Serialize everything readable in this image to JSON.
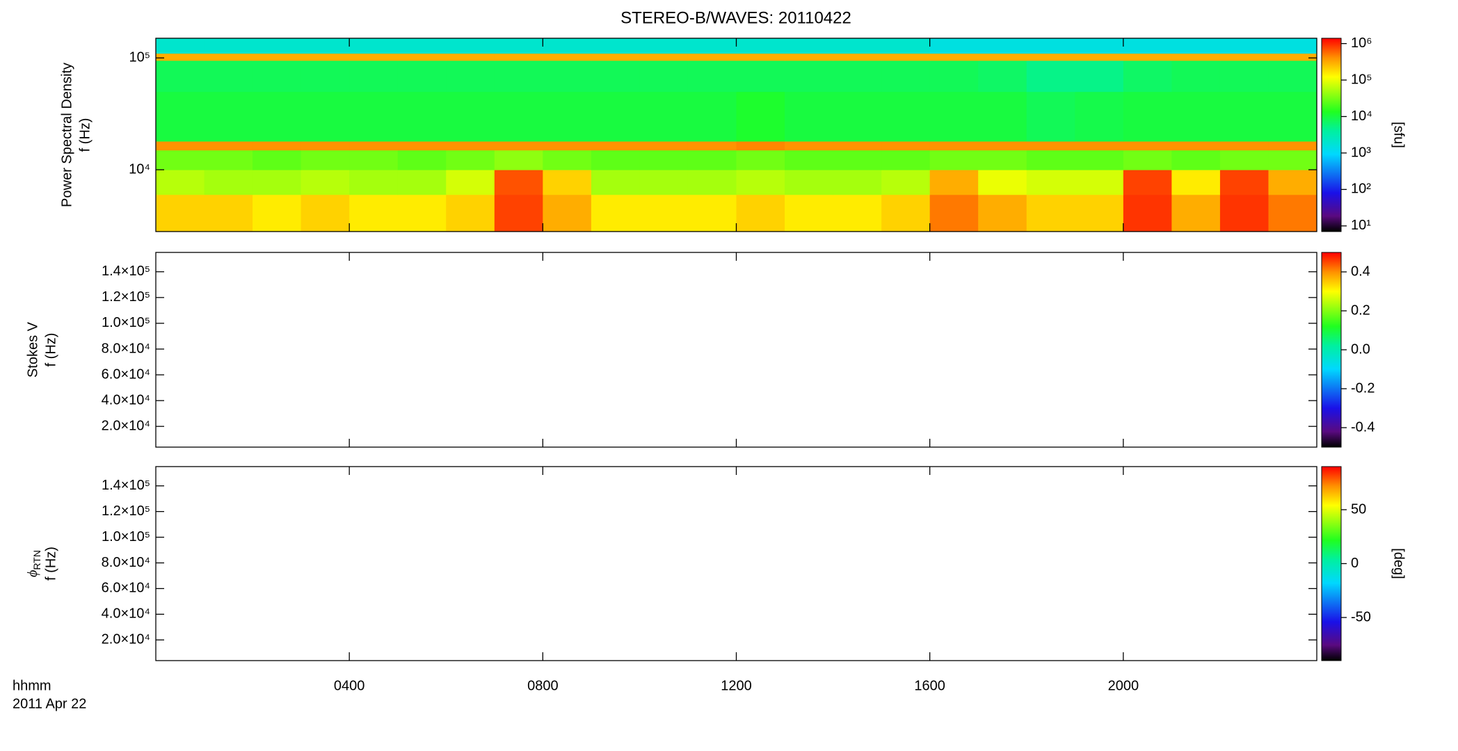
{
  "chart_data": [
    {
      "type": "heatmap",
      "title": "STEREO-B/WAVES: 20110422",
      "ylabel_lines": [
        "Power Spectral Density",
        "f (Hz)"
      ],
      "colorbar_label": "[sfu]",
      "log_y": true,
      "log_z": true,
      "xlim": [
        0,
        24
      ],
      "xticks": [
        {
          "value": 4,
          "label": "0400"
        },
        {
          "value": 8,
          "label": "0800"
        },
        {
          "value": 12,
          "label": "1200"
        },
        {
          "value": 16,
          "label": "1600"
        },
        {
          "value": 20,
          "label": "2000"
        }
      ],
      "ylim": [
        2800,
        150000
      ],
      "yticks": [
        {
          "value": 10000,
          "label": "10⁴"
        },
        {
          "value": 100000,
          "label": "10⁵"
        }
      ],
      "zlim": [
        7,
        1400000
      ],
      "zticks": [
        {
          "value": 10,
          "label": "10¹"
        },
        {
          "value": 100,
          "label": "10²"
        },
        {
          "value": 1000,
          "label": "10³"
        },
        {
          "value": 10000,
          "label": "10⁴"
        },
        {
          "value": 100000,
          "label": "10⁵"
        },
        {
          "value": 1000000,
          "label": "10⁶"
        }
      ],
      "x_edges": [
        0,
        1,
        2,
        3,
        4,
        5,
        6,
        7,
        8,
        9,
        10,
        11,
        12,
        13,
        14,
        15,
        16,
        17,
        18,
        19,
        20,
        21,
        22,
        23,
        24
      ],
      "y_edges": [
        2800,
        6000,
        10000,
        15000,
        18000,
        50000,
        95000,
        110000,
        150000
      ],
      "values": [
        [
          200000,
          200000,
          150000,
          200000,
          150000,
          150000,
          200000,
          800000,
          300000,
          150000,
          150000,
          150000,
          200000,
          150000,
          150000,
          200000,
          500000,
          300000,
          200000,
          200000,
          900000,
          300000,
          900000,
          500000
        ],
        [
          60000,
          50000,
          50000,
          60000,
          50000,
          50000,
          80000,
          700000,
          200000,
          50000,
          50000,
          50000,
          60000,
          50000,
          50000,
          60000,
          300000,
          100000,
          80000,
          80000,
          800000,
          150000,
          800000,
          300000
        ],
        [
          30000,
          30000,
          25000,
          30000,
          30000,
          25000,
          30000,
          40000,
          30000,
          25000,
          25000,
          25000,
          30000,
          25000,
          25000,
          25000,
          30000,
          30000,
          25000,
          25000,
          30000,
          25000,
          30000,
          30000
        ],
        [
          400000,
          400000,
          400000,
          400000,
          400000,
          400000,
          400000,
          400000,
          400000,
          400000,
          400000,
          400000,
          450000,
          400000,
          400000,
          400000,
          400000,
          400000,
          400000,
          400000,
          400000,
          400000,
          400000,
          400000
        ],
        [
          10000,
          10000,
          10000,
          10000,
          10000,
          10000,
          10000,
          10000,
          10000,
          10000,
          10000,
          10000,
          12000,
          10000,
          10000,
          10000,
          10000,
          10000,
          8000,
          9000,
          10000,
          10000,
          10000,
          10000
        ],
        [
          8000,
          8000,
          8000,
          8000,
          8000,
          8000,
          8000,
          8000,
          8000,
          8000,
          8000,
          8000,
          8000,
          8000,
          8000,
          8000,
          8000,
          7000,
          5000,
          5000,
          7000,
          8000,
          8000,
          8000
        ],
        [
          300000,
          300000,
          300000,
          300000,
          300000,
          300000,
          300000,
          300000,
          300000,
          300000,
          300000,
          300000,
          300000,
          300000,
          300000,
          300000,
          300000,
          300000,
          300000,
          300000,
          300000,
          300000,
          300000,
          300000
        ],
        [
          2000,
          2000,
          2000,
          2000,
          2000,
          2000,
          2000,
          2000,
          2000,
          2000,
          2000,
          2000,
          2000,
          2000,
          2000,
          2000,
          1500,
          1500,
          1500,
          1500,
          1500,
          1500,
          1500,
          1500
        ]
      ]
    },
    {
      "type": "heatmap",
      "ylabel_lines": [
        "Stokes V",
        "f (Hz)"
      ],
      "xlim": [
        0,
        24
      ],
      "xticks": [
        {
          "value": 4,
          "label": "0400"
        },
        {
          "value": 8,
          "label": "0800"
        },
        {
          "value": 12,
          "label": "1200"
        },
        {
          "value": 16,
          "label": "1600"
        },
        {
          "value": 20,
          "label": "2000"
        }
      ],
      "ylim": [
        3900,
        155000
      ],
      "yticks": [
        {
          "value": 20000,
          "label": "2.0×10⁴"
        },
        {
          "value": 40000,
          "label": "4.0×10⁴"
        },
        {
          "value": 60000,
          "label": "6.0×10⁴"
        },
        {
          "value": 80000,
          "label": "8.0×10⁴"
        },
        {
          "value": 100000,
          "label": "1.0×10⁵"
        },
        {
          "value": 120000,
          "label": "1.2×10⁵"
        },
        {
          "value": 140000,
          "label": "1.4×10⁵"
        }
      ],
      "zlim": [
        -0.5,
        0.5
      ],
      "zticks": [
        -0.4,
        -0.2,
        {
          "value": 0,
          "label": "0.0"
        },
        0.2,
        0.4
      ]
    },
    {
      "type": "heatmap",
      "ylabel_symbol": "ϕ",
      "ylabel_subscript": "RTN",
      "ylabel_lines": [
        "f (Hz)"
      ],
      "colorbar_label": "[deg]",
      "xlim": [
        0,
        24
      ],
      "xticks": [
        {
          "value": 4,
          "label": "0400"
        },
        {
          "value": 8,
          "label": "0800"
        },
        {
          "value": 12,
          "label": "1200"
        },
        {
          "value": 16,
          "label": "1600"
        },
        {
          "value": 20,
          "label": "2000"
        }
      ],
      "ylim": [
        3900,
        155000
      ],
      "yticks": [
        {
          "value": 20000,
          "label": "2.0×10⁴"
        },
        {
          "value": 40000,
          "label": "4.0×10⁴"
        },
        {
          "value": 60000,
          "label": "6.0×10⁴"
        },
        {
          "value": 80000,
          "label": "8.0×10⁴"
        },
        {
          "value": 100000,
          "label": "1.0×10⁵"
        },
        {
          "value": 120000,
          "label": "1.2×10⁵"
        },
        {
          "value": 140000,
          "label": "1.4×10⁵"
        }
      ],
      "zlim": [
        -90,
        90
      ],
      "zticks": [
        -50,
        0,
        50
      ],
      "time_label": "hhmm",
      "date_label": "2011 Apr 22"
    }
  ]
}
